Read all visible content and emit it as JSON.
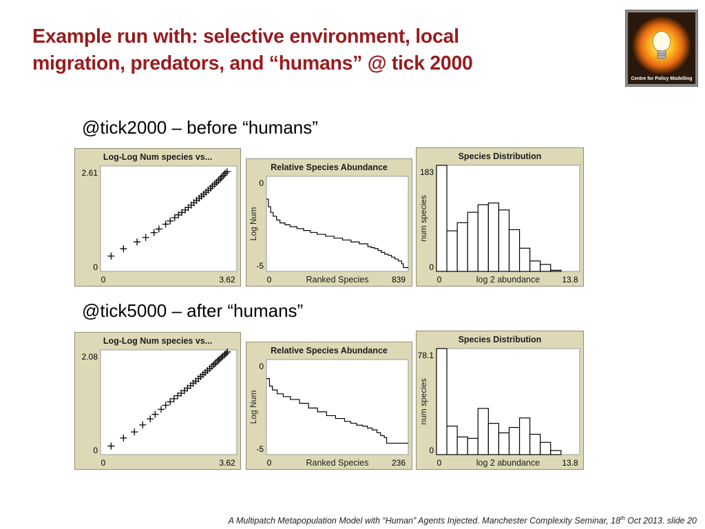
{
  "slide": {
    "title_line1": "Example run with: selective environment, local",
    "title_line2": "migration, predators, and “humans” @ tick 2000",
    "heading_before": "@tick2000 – before “humans”",
    "heading_after": "@tick5000 – after “humans”",
    "logo_text": "Centre for Policy Modelling",
    "footer": {
      "main": "A Multipatch Metapopulation Model with “Human” Agents Injected. Manchester Complexity Seminar, 18",
      "sup": "th",
      "rest": " Oct 2013.  slide  20"
    }
  },
  "colors": {
    "title": "#9a1b1e",
    "panel_frame": "#ddd9b7",
    "plot_bg": "#ffffff",
    "ink": "#000000"
  },
  "chart_data": [
    {
      "type": "scatter",
      "title": "Log-Log Num species vs...",
      "xticks": [
        "0",
        "3.62"
      ],
      "yticks": [
        "0",
        "2.61"
      ],
      "xlim": [
        0,
        3.62
      ],
      "ylim": [
        0,
        2.61
      ],
      "marker": "plus",
      "x": [
        0.28,
        0.61,
        0.97,
        1.2,
        1.42,
        1.55,
        1.73,
        1.85,
        1.97,
        2.07,
        2.16,
        2.25,
        2.33,
        2.41,
        2.48,
        2.55,
        2.62,
        2.68,
        2.74,
        2.8,
        2.86,
        2.92,
        2.97,
        3.03,
        3.08,
        3.13,
        3.18,
        3.22,
        3.27,
        3.31,
        3.36
      ],
      "y": [
        0.38,
        0.56,
        0.73,
        0.84,
        0.96,
        1.05,
        1.17,
        1.25,
        1.33,
        1.4,
        1.46,
        1.52,
        1.58,
        1.64,
        1.7,
        1.76,
        1.81,
        1.86,
        1.91,
        1.96,
        2.01,
        2.06,
        2.11,
        2.16,
        2.2,
        2.25,
        2.29,
        2.34,
        2.38,
        2.43,
        2.47
      ]
    },
    {
      "type": "line",
      "title": "Relative Species Abundance",
      "xlabel": "Ranked Species",
      "ylabel": "Log Num",
      "xticks": [
        "0",
        "839"
      ],
      "yticks": [
        "0",
        "-5"
      ],
      "xlim": [
        0,
        839
      ],
      "ylim": [
        -5,
        0
      ],
      "x": [
        0,
        12,
        25,
        40,
        60,
        80,
        110,
        140,
        180,
        220,
        260,
        300,
        350,
        400,
        450,
        500,
        550,
        600,
        620,
        640,
        660,
        680,
        700,
        720,
        740,
        760,
        780,
        800,
        810,
        839
      ],
      "y": [
        -1.2,
        -1.6,
        -1.9,
        -2.1,
        -2.3,
        -2.45,
        -2.55,
        -2.65,
        -2.75,
        -2.85,
        -2.95,
        -3.05,
        -3.15,
        -3.25,
        -3.35,
        -3.45,
        -3.55,
        -3.7,
        -3.75,
        -3.8,
        -3.9,
        -4.0,
        -4.1,
        -4.15,
        -4.25,
        -4.35,
        -4.45,
        -4.6,
        -4.8,
        -4.8
      ]
    },
    {
      "type": "bar",
      "title": "Species Distribution",
      "xlabel": "log 2 abundance",
      "ylabel": "num species",
      "xticks": [
        "0",
        "13.8"
      ],
      "yticks": [
        "0",
        "183"
      ],
      "xlim": [
        0,
        13.8
      ],
      "ylim": [
        0,
        183
      ],
      "bin_width": 1,
      "values": [
        183,
        70,
        84,
        102,
        115,
        118,
        106,
        72,
        40,
        18,
        12,
        2,
        0,
        0
      ]
    },
    {
      "type": "scatter",
      "title": "Log-Log Num species vs...",
      "xticks": [
        "0",
        "3.62"
      ],
      "yticks": [
        "0",
        "2.08"
      ],
      "xlim": [
        0,
        3.62
      ],
      "ylim": [
        0,
        2.08
      ],
      "marker": "plus",
      "x": [
        0.28,
        0.61,
        0.9,
        1.12,
        1.32,
        1.45,
        1.61,
        1.73,
        1.85,
        1.95,
        2.05,
        2.14,
        2.23,
        2.31,
        2.39,
        2.46,
        2.53,
        2.6,
        2.66,
        2.72,
        2.78,
        2.84,
        2.9,
        2.96,
        3.01,
        3.06,
        3.11,
        3.15,
        3.2,
        3.24,
        3.29,
        3.33,
        3.37
      ],
      "y": [
        0.17,
        0.33,
        0.45,
        0.59,
        0.71,
        0.8,
        0.9,
        0.98,
        1.05,
        1.11,
        1.17,
        1.22,
        1.27,
        1.32,
        1.37,
        1.42,
        1.46,
        1.51,
        1.55,
        1.59,
        1.63,
        1.67,
        1.71,
        1.75,
        1.79,
        1.82,
        1.86,
        1.89,
        1.92,
        1.95,
        1.98,
        2.01,
        2.04
      ]
    },
    {
      "type": "line",
      "title": "Relative Species Abundance",
      "xlabel": "Ranked Species",
      "ylabel": "Log Num",
      "xticks": [
        "0",
        "236"
      ],
      "yticks": [
        "0",
        "-5"
      ],
      "xlim": [
        0,
        236
      ],
      "ylim": [
        -5,
        0
      ],
      "x": [
        0,
        5,
        10,
        18,
        28,
        40,
        55,
        70,
        85,
        100,
        115,
        130,
        140,
        150,
        160,
        168,
        176,
        184,
        190,
        196,
        200,
        236
      ],
      "y": [
        -1.0,
        -1.4,
        -1.6,
        -1.8,
        -1.95,
        -2.1,
        -2.3,
        -2.55,
        -2.75,
        -2.95,
        -3.1,
        -3.25,
        -3.35,
        -3.45,
        -3.5,
        -3.6,
        -3.7,
        -3.85,
        -4.0,
        -4.1,
        -4.4,
        -4.4
      ]
    },
    {
      "type": "bar",
      "title": "Species Distribution",
      "xlabel": "log 2 abundance",
      "ylabel": "num species",
      "xticks": [
        "0",
        "13.8"
      ],
      "yticks": [
        "0",
        "78.1"
      ],
      "xlim": [
        0,
        13.8
      ],
      "ylim": [
        0,
        78.1
      ],
      "bin_width": 1,
      "values": [
        78.1,
        21,
        13,
        12,
        34,
        23,
        16,
        20,
        27,
        15,
        9,
        3,
        0,
        0
      ]
    }
  ]
}
